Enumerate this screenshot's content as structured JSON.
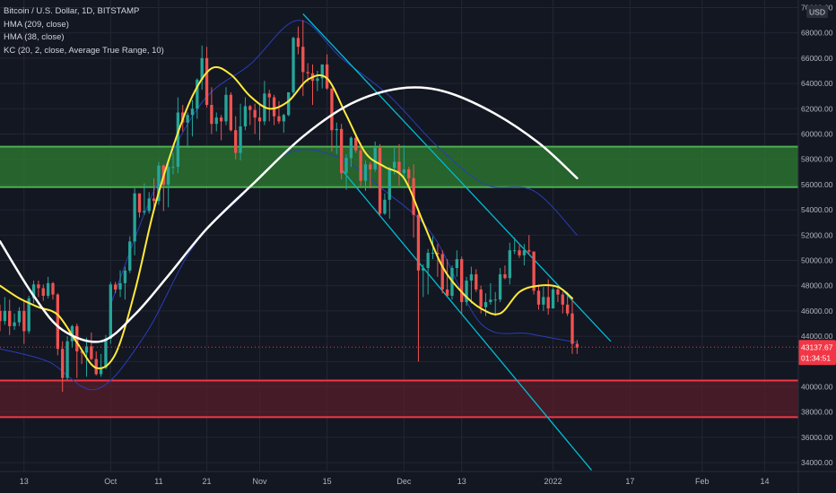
{
  "legend": {
    "symbol": "Bitcoin / U.S. Dollar, 1D, BITSTAMP",
    "indicators": [
      "HMA (209, close)",
      "HMA (38, close)",
      "KC (20, 2, close, Average True Range, 10)"
    ]
  },
  "colors": {
    "background": "#131722",
    "grid": "#232734",
    "candle_up": "#26a69a",
    "candle_down": "#ef5350",
    "hma_fast": "#ffeb3b",
    "hma_slow": "#ffffff",
    "keltner": "#2a3db8",
    "channel": "#00bcd4",
    "resistance_zone": "#2e7d32",
    "support_zone": "#5a1e2a",
    "axis_text": "#b2b5be",
    "price_tag": "#f23645"
  },
  "chart_data": {
    "type": "candlestick",
    "x_axis": {
      "type": "date",
      "range": [
        "2021-09-08",
        "2022-02-21"
      ],
      "tick_labels": [
        {
          "label": "13",
          "date": "2021-09-13"
        },
        {
          "label": "Oct",
          "date": "2021-10-01"
        },
        {
          "label": "11",
          "date": "2021-10-11"
        },
        {
          "label": "21",
          "date": "2021-10-21"
        },
        {
          "label": "Nov",
          "date": "2021-11-01"
        },
        {
          "label": "15",
          "date": "2021-11-15"
        },
        {
          "label": "Dec",
          "date": "2021-12-01"
        },
        {
          "label": "13",
          "date": "2021-12-13"
        },
        {
          "label": "2022",
          "date": "2022-01-01"
        },
        {
          "label": "17",
          "date": "2022-01-17"
        },
        {
          "label": "Feb",
          "date": "2022-02-01"
        },
        {
          "label": "14",
          "date": "2022-02-14"
        }
      ]
    },
    "y_axis": {
      "unit": "USD",
      "range": [
        33300,
        70600
      ],
      "ticks": [
        34000,
        36000,
        38000,
        40000,
        42000,
        44000,
        46000,
        48000,
        50000,
        52000,
        54000,
        56000,
        58000,
        60000,
        62000,
        64000,
        66000,
        68000,
        70000
      ],
      "tick_labels": [
        "34000.00",
        "36000.00",
        "38000.00",
        "40000.00",
        "42000.00",
        "44000.00",
        "46000.00",
        "48000.00",
        "50000.00",
        "52000.00",
        "54000.00",
        "56000.00",
        "58000.00",
        "60000.00",
        "62000.00",
        "64000.00",
        "66000.00",
        "68000.00",
        "70000.00"
      ]
    },
    "current_price": {
      "value": 43137.67,
      "label": "43137.67",
      "countdown": "01:34:51"
    },
    "zones": [
      {
        "kind": "resistance",
        "from": 55800,
        "to": 59000
      },
      {
        "kind": "support",
        "from": 37600,
        "to": 40500
      }
    ],
    "channel": {
      "upper": [
        [
          "2021-11-10",
          69500
        ],
        [
          "2022-01-13",
          43600
        ]
      ],
      "lower": [
        [
          "2021-11-18",
          57200
        ],
        [
          "2022-01-09",
          33400
        ]
      ]
    },
    "candles": [
      [
        "2021-09-08",
        46000,
        46500,
        44400,
        45200
      ],
      [
        "2021-09-09",
        45200,
        47100,
        44900,
        46000
      ],
      [
        "2021-09-10",
        46000,
        46900,
        44100,
        44800
      ],
      [
        "2021-09-11",
        44800,
        45800,
        44500,
        45100
      ],
      [
        "2021-09-12",
        45100,
        46300,
        44800,
        46000
      ],
      [
        "2021-09-13",
        46000,
        46800,
        43400,
        44400
      ],
      [
        "2021-09-14",
        44400,
        47200,
        44200,
        47000
      ],
      [
        "2021-09-15",
        47000,
        48400,
        46600,
        48100
      ],
      [
        "2021-09-16",
        48100,
        48400,
        47100,
        47800
      ],
      [
        "2021-09-17",
        47800,
        48100,
        46800,
        47200
      ],
      [
        "2021-09-18",
        47200,
        48700,
        47000,
        48200
      ],
      [
        "2021-09-19",
        48200,
        48300,
        46900,
        47300
      ],
      [
        "2021-09-20",
        47300,
        47400,
        42500,
        43000
      ],
      [
        "2021-09-21",
        43000,
        43600,
        39600,
        40700
      ],
      [
        "2021-09-22",
        40700,
        44000,
        40500,
        43600
      ],
      [
        "2021-09-23",
        43600,
        44900,
        43100,
        44800
      ],
      [
        "2021-09-24",
        44800,
        45000,
        40700,
        42800
      ],
      [
        "2021-09-25",
        42800,
        42900,
        41800,
        42700
      ],
      [
        "2021-09-26",
        42700,
        43900,
        40800,
        43200
      ],
      [
        "2021-09-27",
        43200,
        44300,
        42100,
        42200
      ],
      [
        "2021-09-28",
        42200,
        42800,
        40900,
        41000
      ],
      [
        "2021-09-29",
        41000,
        42600,
        40800,
        41500
      ],
      [
        "2021-09-30",
        41500,
        44100,
        41400,
        43800
      ],
      [
        "2021-10-01",
        43800,
        48300,
        43400,
        48100
      ],
      [
        "2021-10-02",
        48100,
        48300,
        47400,
        47700
      ],
      [
        "2021-10-03",
        47700,
        49200,
        47100,
        48200
      ],
      [
        "2021-10-04",
        48200,
        49500,
        46900,
        49200
      ],
      [
        "2021-10-05",
        49200,
        51900,
        49000,
        51500
      ],
      [
        "2021-10-06",
        51500,
        55700,
        50400,
        55300
      ],
      [
        "2021-10-07",
        55300,
        55300,
        53400,
        53800
      ],
      [
        "2021-10-08",
        53800,
        56100,
        53600,
        53900
      ],
      [
        "2021-10-09",
        53900,
        55400,
        53700,
        54900
      ],
      [
        "2021-10-10",
        54900,
        56500,
        54100,
        54700
      ],
      [
        "2021-10-11",
        54700,
        57800,
        54400,
        57500
      ],
      [
        "2021-10-12",
        57500,
        57600,
        53900,
        56000
      ],
      [
        "2021-10-13",
        56000,
        57700,
        54200,
        57400
      ],
      [
        "2021-10-14",
        57400,
        58500,
        56800,
        57400
      ],
      [
        "2021-10-15",
        57400,
        62900,
        56900,
        61700
      ],
      [
        "2021-10-16",
        61700,
        62300,
        60200,
        60900
      ],
      [
        "2021-10-17",
        60900,
        61700,
        58900,
        61500
      ],
      [
        "2021-10-18",
        61500,
        62700,
        59800,
        62000
      ],
      [
        "2021-10-19",
        62000,
        64400,
        61200,
        64300
      ],
      [
        "2021-10-20",
        64300,
        67000,
        63500,
        66000
      ],
      [
        "2021-10-21",
        66000,
        66900,
        62100,
        62300
      ],
      [
        "2021-10-22",
        62300,
        63700,
        60000,
        60800
      ],
      [
        "2021-10-23",
        60800,
        61700,
        60200,
        61300
      ],
      [
        "2021-10-24",
        61300,
        61500,
        59500,
        61000
      ],
      [
        "2021-10-25",
        61000,
        63700,
        60700,
        63100
      ],
      [
        "2021-10-26",
        63100,
        63300,
        60200,
        60300
      ],
      [
        "2021-10-27",
        60300,
        61400,
        58000,
        58500
      ],
      [
        "2021-10-28",
        58500,
        62400,
        57900,
        60600
      ],
      [
        "2021-10-29",
        60600,
        62900,
        60300,
        62200
      ],
      [
        "2021-10-30",
        62200,
        62300,
        60700,
        61900
      ],
      [
        "2021-10-31",
        61900,
        62400,
        60000,
        61300
      ],
      [
        "2021-11-01",
        61300,
        62400,
        59500,
        61000
      ],
      [
        "2021-11-02",
        61000,
        64200,
        60700,
        63200
      ],
      [
        "2021-11-03",
        63200,
        63500,
        61000,
        62900
      ],
      [
        "2021-11-04",
        62900,
        63100,
        60700,
        61400
      ],
      [
        "2021-11-05",
        61400,
        62600,
        60800,
        61000
      ],
      [
        "2021-11-06",
        61000,
        61600,
        60100,
        61500
      ],
      [
        "2021-11-07",
        61500,
        63300,
        61400,
        63300
      ],
      [
        "2021-11-08",
        63300,
        67700,
        63100,
        67600
      ],
      [
        "2021-11-09",
        67600,
        68500,
        66300,
        66900
      ],
      [
        "2021-11-10",
        66900,
        69000,
        63000,
        64900
      ],
      [
        "2021-11-11",
        64900,
        65600,
        64100,
        64800
      ],
      [
        "2021-11-12",
        64800,
        65500,
        62300,
        64200
      ],
      [
        "2021-11-13",
        64200,
        65000,
        63400,
        64400
      ],
      [
        "2021-11-14",
        64400,
        65500,
        63600,
        65500
      ],
      [
        "2021-11-15",
        65500,
        66300,
        63500,
        63600
      ],
      [
        "2021-11-16",
        63600,
        63600,
        58600,
        60300
      ],
      [
        "2021-11-17",
        60300,
        60900,
        58400,
        60400
      ],
      [
        "2021-11-18",
        60400,
        60800,
        56400,
        56900
      ],
      [
        "2021-11-19",
        56900,
        58400,
        55600,
        58100
      ],
      [
        "2021-11-20",
        58100,
        59800,
        57400,
        59700
      ],
      [
        "2021-11-21",
        59700,
        60000,
        58500,
        58700
      ],
      [
        "2021-11-22",
        58700,
        59300,
        55900,
        56300
      ],
      [
        "2021-11-23",
        56300,
        57900,
        55500,
        57600
      ],
      [
        "2021-11-24",
        57600,
        57800,
        55700,
        57200
      ],
      [
        "2021-11-25",
        57200,
        59400,
        57000,
        58900
      ],
      [
        "2021-11-26",
        58900,
        59200,
        53500,
        53700
      ],
      [
        "2021-11-27",
        53700,
        55300,
        53600,
        54800
      ],
      [
        "2021-11-28",
        54800,
        57400,
        53300,
        57300
      ],
      [
        "2021-11-29",
        57300,
        58900,
        56800,
        57800
      ],
      [
        "2021-11-30",
        57800,
        59200,
        55900,
        56900
      ],
      [
        "2021-12-01",
        56900,
        59100,
        56500,
        57200
      ],
      [
        "2021-12-02",
        57200,
        57400,
        55800,
        56500
      ],
      [
        "2021-12-03",
        56500,
        57600,
        51800,
        53600
      ],
      [
        "2021-12-04",
        53600,
        53900,
        42000,
        49200
      ],
      [
        "2021-12-05",
        49200,
        49700,
        47100,
        49400
      ],
      [
        "2021-12-06",
        49400,
        50900,
        47300,
        50600
      ],
      [
        "2021-12-07",
        50600,
        51900,
        50100,
        50600
      ],
      [
        "2021-12-08",
        50600,
        51300,
        48700,
        50500
      ],
      [
        "2021-12-09",
        50500,
        50800,
        47400,
        47700
      ],
      [
        "2021-12-10",
        47700,
        50100,
        47300,
        47200
      ],
      [
        "2021-12-11",
        47200,
        49600,
        46900,
        49400
      ],
      [
        "2021-12-12",
        49400,
        50800,
        48700,
        50100
      ],
      [
        "2021-12-13",
        50100,
        50300,
        45700,
        46700
      ],
      [
        "2021-12-14",
        46700,
        48700,
        46400,
        48400
      ],
      [
        "2021-12-15",
        48400,
        49500,
        46600,
        48900
      ],
      [
        "2021-12-16",
        48900,
        49300,
        47500,
        47700
      ],
      [
        "2021-12-17",
        47700,
        48000,
        45800,
        46300
      ],
      [
        "2021-12-18",
        46300,
        47400,
        45600,
        46700
      ],
      [
        "2021-12-19",
        46700,
        48200,
        46500,
        46900
      ],
      [
        "2021-12-20",
        46900,
        47500,
        45600,
        46900
      ],
      [
        "2021-12-21",
        46900,
        49400,
        46700,
        48900
      ],
      [
        "2021-12-22",
        48900,
        49600,
        48500,
        48600
      ],
      [
        "2021-12-23",
        48600,
        51400,
        48100,
        50800
      ],
      [
        "2021-12-24",
        50800,
        51800,
        50500,
        50800
      ],
      [
        "2021-12-25",
        50800,
        51200,
        50200,
        50400
      ],
      [
        "2021-12-26",
        50400,
        51300,
        49600,
        50800
      ],
      [
        "2021-12-27",
        50800,
        52000,
        50500,
        50700
      ],
      [
        "2021-12-28",
        50700,
        50700,
        47300,
        47600
      ],
      [
        "2021-12-29",
        47600,
        48100,
        46100,
        46500
      ],
      [
        "2021-12-30",
        46500,
        47900,
        46000,
        47100
      ],
      [
        "2021-12-31",
        47100,
        48500,
        45700,
        46200
      ],
      [
        "2022-01-01",
        46200,
        47900,
        46200,
        47700
      ],
      [
        "2022-01-02",
        47700,
        47900,
        46700,
        47300
      ],
      [
        "2022-01-03",
        47300,
        47500,
        45800,
        46500
      ],
      [
        "2022-01-04",
        46500,
        47500,
        45600,
        45800
      ],
      [
        "2022-01-05",
        45800,
        47100,
        42600,
        43400
      ],
      [
        "2022-01-06",
        43400,
        43700,
        42600,
        43100
      ]
    ],
    "hma_fast": [
      [
        "2021-09-08",
        48000
      ],
      [
        "2021-09-12",
        47000
      ],
      [
        "2021-09-16",
        46300
      ],
      [
        "2021-09-20",
        45700
      ],
      [
        "2021-09-24",
        43500
      ],
      [
        "2021-09-28",
        41500
      ],
      [
        "2021-10-02",
        42600
      ],
      [
        "2021-10-06",
        47500
      ],
      [
        "2021-10-10",
        54000
      ],
      [
        "2021-10-14",
        59000
      ],
      [
        "2021-10-18",
        63000
      ],
      [
        "2021-10-22",
        65200
      ],
      [
        "2021-10-26",
        64700
      ],
      [
        "2021-10-30",
        63000
      ],
      [
        "2021-11-03",
        62000
      ],
      [
        "2021-11-07",
        62600
      ],
      [
        "2021-11-11",
        64300
      ],
      [
        "2021-11-15",
        64400
      ],
      [
        "2021-11-19",
        61500
      ],
      [
        "2021-11-23",
        58500
      ],
      [
        "2021-11-27",
        57400
      ],
      [
        "2021-12-01",
        56500
      ],
      [
        "2021-12-05",
        53000
      ],
      [
        "2021-12-09",
        49500
      ],
      [
        "2021-12-13",
        47500
      ],
      [
        "2021-12-17",
        46200
      ],
      [
        "2021-12-21",
        45800
      ],
      [
        "2021-12-25",
        47500
      ],
      [
        "2021-12-29",
        48000
      ],
      [
        "2022-01-02",
        47900
      ],
      [
        "2022-01-05",
        47000
      ]
    ],
    "hma_slow": [
      [
        "2021-09-08",
        51500
      ],
      [
        "2021-09-15",
        47200
      ],
      [
        "2021-09-21",
        44500
      ],
      [
        "2021-09-29",
        43600
      ],
      [
        "2021-10-06",
        45700
      ],
      [
        "2021-10-13",
        48800
      ],
      [
        "2021-10-21",
        52500
      ],
      [
        "2021-10-31",
        56200
      ],
      [
        "2021-11-10",
        59800
      ],
      [
        "2021-11-20",
        62400
      ],
      [
        "2021-11-30",
        63600
      ],
      [
        "2021-12-09",
        63400
      ],
      [
        "2021-12-19",
        61800
      ],
      [
        "2021-12-29",
        59300
      ],
      [
        "2022-01-06",
        56500
      ]
    ],
    "keltner_upper": [
      [
        "2021-10-01",
        46500
      ],
      [
        "2021-10-10",
        55500
      ],
      [
        "2021-10-20",
        62500
      ],
      [
        "2021-10-30",
        65500
      ],
      [
        "2021-11-09",
        69000
      ],
      [
        "2021-11-18",
        66000
      ],
      [
        "2021-11-28",
        63000
      ],
      [
        "2021-12-08",
        59000
      ],
      [
        "2021-12-18",
        56000
      ],
      [
        "2021-12-28",
        55500
      ],
      [
        "2022-01-06",
        52000
      ]
    ],
    "keltner_lower": [
      [
        "2021-09-08",
        43000
      ],
      [
        "2021-09-18",
        42000
      ],
      [
        "2021-09-28",
        39800
      ],
      [
        "2021-10-08",
        44000
      ],
      [
        "2021-10-18",
        51000
      ],
      [
        "2021-10-28",
        55000
      ],
      [
        "2021-11-07",
        58500
      ],
      [
        "2021-11-17",
        58200
      ],
      [
        "2021-11-27",
        55500
      ],
      [
        "2021-12-07",
        52000
      ],
      [
        "2021-12-17",
        45000
      ],
      [
        "2021-12-27",
        44200
      ],
      [
        "2022-01-06",
        43500
      ]
    ],
    "price_line": 43137.67
  }
}
